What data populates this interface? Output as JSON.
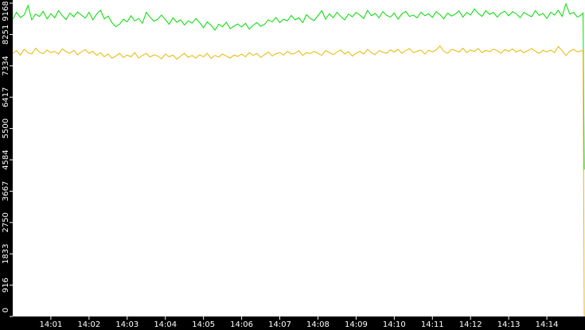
{
  "chart_data": {
    "type": "line",
    "x": [
      0,
      0.1,
      0.2,
      0.3,
      0.4,
      0.5,
      0.6,
      0.7,
      0.8,
      0.9,
      1,
      1.1,
      1.2,
      1.3,
      1.4,
      1.5,
      1.6,
      1.7,
      1.8,
      1.9,
      2,
      2.1,
      2.2,
      2.3,
      2.4,
      2.5,
      2.6,
      2.7,
      2.8,
      2.9,
      3,
      3.1,
      3.2,
      3.3,
      3.4,
      3.5,
      3.6,
      3.7,
      3.8,
      3.9,
      4,
      4.1,
      4.2,
      4.3,
      4.4,
      4.5,
      4.6,
      4.7,
      4.8,
      4.9,
      5,
      5.1,
      5.2,
      5.3,
      5.4,
      5.5,
      5.6,
      5.7,
      5.8,
      5.9,
      6,
      6.1,
      6.2,
      6.3,
      6.4,
      6.5,
      6.6,
      6.7,
      6.8,
      6.9,
      7,
      7.1,
      7.2,
      7.3,
      7.4,
      7.5,
      7.6,
      7.7,
      7.8,
      7.9,
      8,
      8.1,
      8.2,
      8.3,
      8.4,
      8.5,
      8.6,
      8.7,
      8.8,
      8.9,
      9,
      9.1,
      9.2,
      9.3,
      9.4,
      9.5,
      9.6,
      9.7,
      9.8,
      9.9,
      10,
      10.1,
      10.2,
      10.3,
      10.4,
      10.5,
      10.6,
      10.7,
      10.8,
      10.9,
      11,
      11.1,
      11.2,
      11.3,
      11.4,
      11.5,
      11.6,
      11.7,
      11.8,
      11.9,
      12,
      12.1,
      12.2,
      12.3,
      12.4,
      12.5,
      12.6,
      12.7,
      12.8,
      12.9,
      13,
      13.1,
      13.2,
      13.3,
      13.4,
      13.5,
      13.6,
      13.7,
      13.8,
      13.9,
      14,
      14.1,
      14.2,
      14.3,
      14.4,
      14.5,
      14.6,
      14.7,
      14.8,
      14.9,
      14.95,
      14.98
    ],
    "series": [
      {
        "color": "#00dd00",
        "values": [
          8700,
          8900,
          8750,
          8820,
          9100,
          8680,
          8850,
          8780,
          8930,
          8710,
          8860,
          8740,
          8950,
          8800,
          8690,
          8880,
          8770,
          8910,
          8820,
          8730,
          8900,
          8680,
          8850,
          8960,
          8710,
          8790,
          8600,
          8480,
          8550,
          8700,
          8620,
          8800,
          8650,
          8720,
          8580,
          8900,
          8760,
          8640,
          8700,
          8820,
          8690,
          8550,
          8740,
          8610,
          8680,
          8530,
          8650,
          8580,
          8720,
          8600,
          8450,
          8620,
          8520,
          8380,
          8550,
          8480,
          8610,
          8420,
          8500,
          8560,
          8470,
          8580,
          8410,
          8520,
          8600,
          8490,
          8550,
          8680,
          8620,
          8750,
          8600,
          8700,
          8650,
          8810,
          8680,
          8740,
          8600,
          8830,
          8720,
          8660,
          8800,
          8950,
          8700,
          8860,
          8740,
          8900,
          8780,
          8680,
          8850,
          8770,
          8900,
          8820,
          8720,
          8960,
          8800,
          8870,
          8740,
          8920,
          8810,
          8760,
          8880,
          8700,
          8850,
          8930,
          8780,
          8820,
          8740,
          8900,
          8800,
          8860,
          8750,
          8920,
          8830,
          8710,
          8880,
          8790,
          8850,
          8940,
          8760,
          8900,
          8820,
          9000,
          8870,
          8780,
          8950,
          8840,
          8900,
          8760,
          8880,
          8930,
          8800,
          8920,
          8860,
          8740,
          8900,
          8830,
          8770,
          8950,
          8810,
          8870,
          8720,
          8900,
          8820,
          8960,
          8780,
          9150,
          8850,
          8900,
          8760,
          8820,
          8880,
          4300
        ]
      },
      {
        "color": "#e8b800",
        "values": [
          7700,
          7780,
          7650,
          7820,
          7720,
          7680,
          7850,
          7740,
          7690,
          7800,
          7720,
          7760,
          7680,
          7830,
          7750,
          7700,
          7790,
          7660,
          7740,
          7810,
          7700,
          7760,
          7640,
          7720,
          7600,
          7680,
          7560,
          7620,
          7700,
          7580,
          7650,
          7600,
          7720,
          7560,
          7640,
          7700,
          7590,
          7660,
          7620,
          7540,
          7680,
          7600,
          7650,
          7530,
          7620,
          7700,
          7580,
          7640,
          7560,
          7660,
          7600,
          7700,
          7550,
          7640,
          7590,
          7680,
          7620,
          7560,
          7650,
          7610,
          7680,
          7600,
          7720,
          7640,
          7700,
          7580,
          7660,
          7740,
          7620,
          7690,
          7720,
          7650,
          7760,
          7680,
          7700,
          7780,
          7640,
          7720,
          7690,
          7760,
          7700,
          7640,
          7780,
          7720,
          7660,
          7740,
          7800,
          7680,
          7750,
          7620,
          7700,
          7760,
          7680,
          7820,
          7720,
          7660,
          7780,
          7740,
          7700,
          7800,
          7740,
          7820,
          7700,
          7780,
          7840,
          7720,
          7760,
          7800,
          7680,
          7790,
          7740,
          7800,
          7920,
          7760,
          7700,
          7820,
          7780,
          7740,
          7850,
          7720,
          7800,
          7760,
          7840,
          7720,
          7790,
          7750,
          7820,
          7780,
          7700,
          7810,
          7760,
          7830,
          7740,
          7800,
          7720,
          7780,
          7840,
          7760,
          7700,
          7790,
          7740,
          7800,
          7720,
          7900,
          7780,
          7640,
          7760,
          7820,
          7740,
          7780,
          7760,
          0
        ]
      }
    ],
    "xlim": [
      0,
      15
    ],
    "xticks": [
      {
        "value": 1,
        "label": "14:01"
      },
      {
        "value": 2,
        "label": "14:02"
      },
      {
        "value": 3,
        "label": "14:03"
      },
      {
        "value": 4,
        "label": "14:04"
      },
      {
        "value": 5,
        "label": "14:05"
      },
      {
        "value": 6,
        "label": "14:06"
      },
      {
        "value": 7,
        "label": "14:07"
      },
      {
        "value": 8,
        "label": "14:08"
      },
      {
        "value": 9,
        "label": "14:09"
      },
      {
        "value": 10,
        "label": "14:10"
      },
      {
        "value": 11,
        "label": "14:11"
      },
      {
        "value": 12,
        "label": "14:12"
      },
      {
        "value": 13,
        "label": "14:13"
      },
      {
        "value": 14,
        "label": "14:14"
      }
    ],
    "ylim": [
      0,
      9168
    ],
    "yticks": [
      0,
      916,
      1833,
      2750,
      3667,
      4584,
      5500,
      6417,
      7334,
      8251,
      9168
    ]
  }
}
